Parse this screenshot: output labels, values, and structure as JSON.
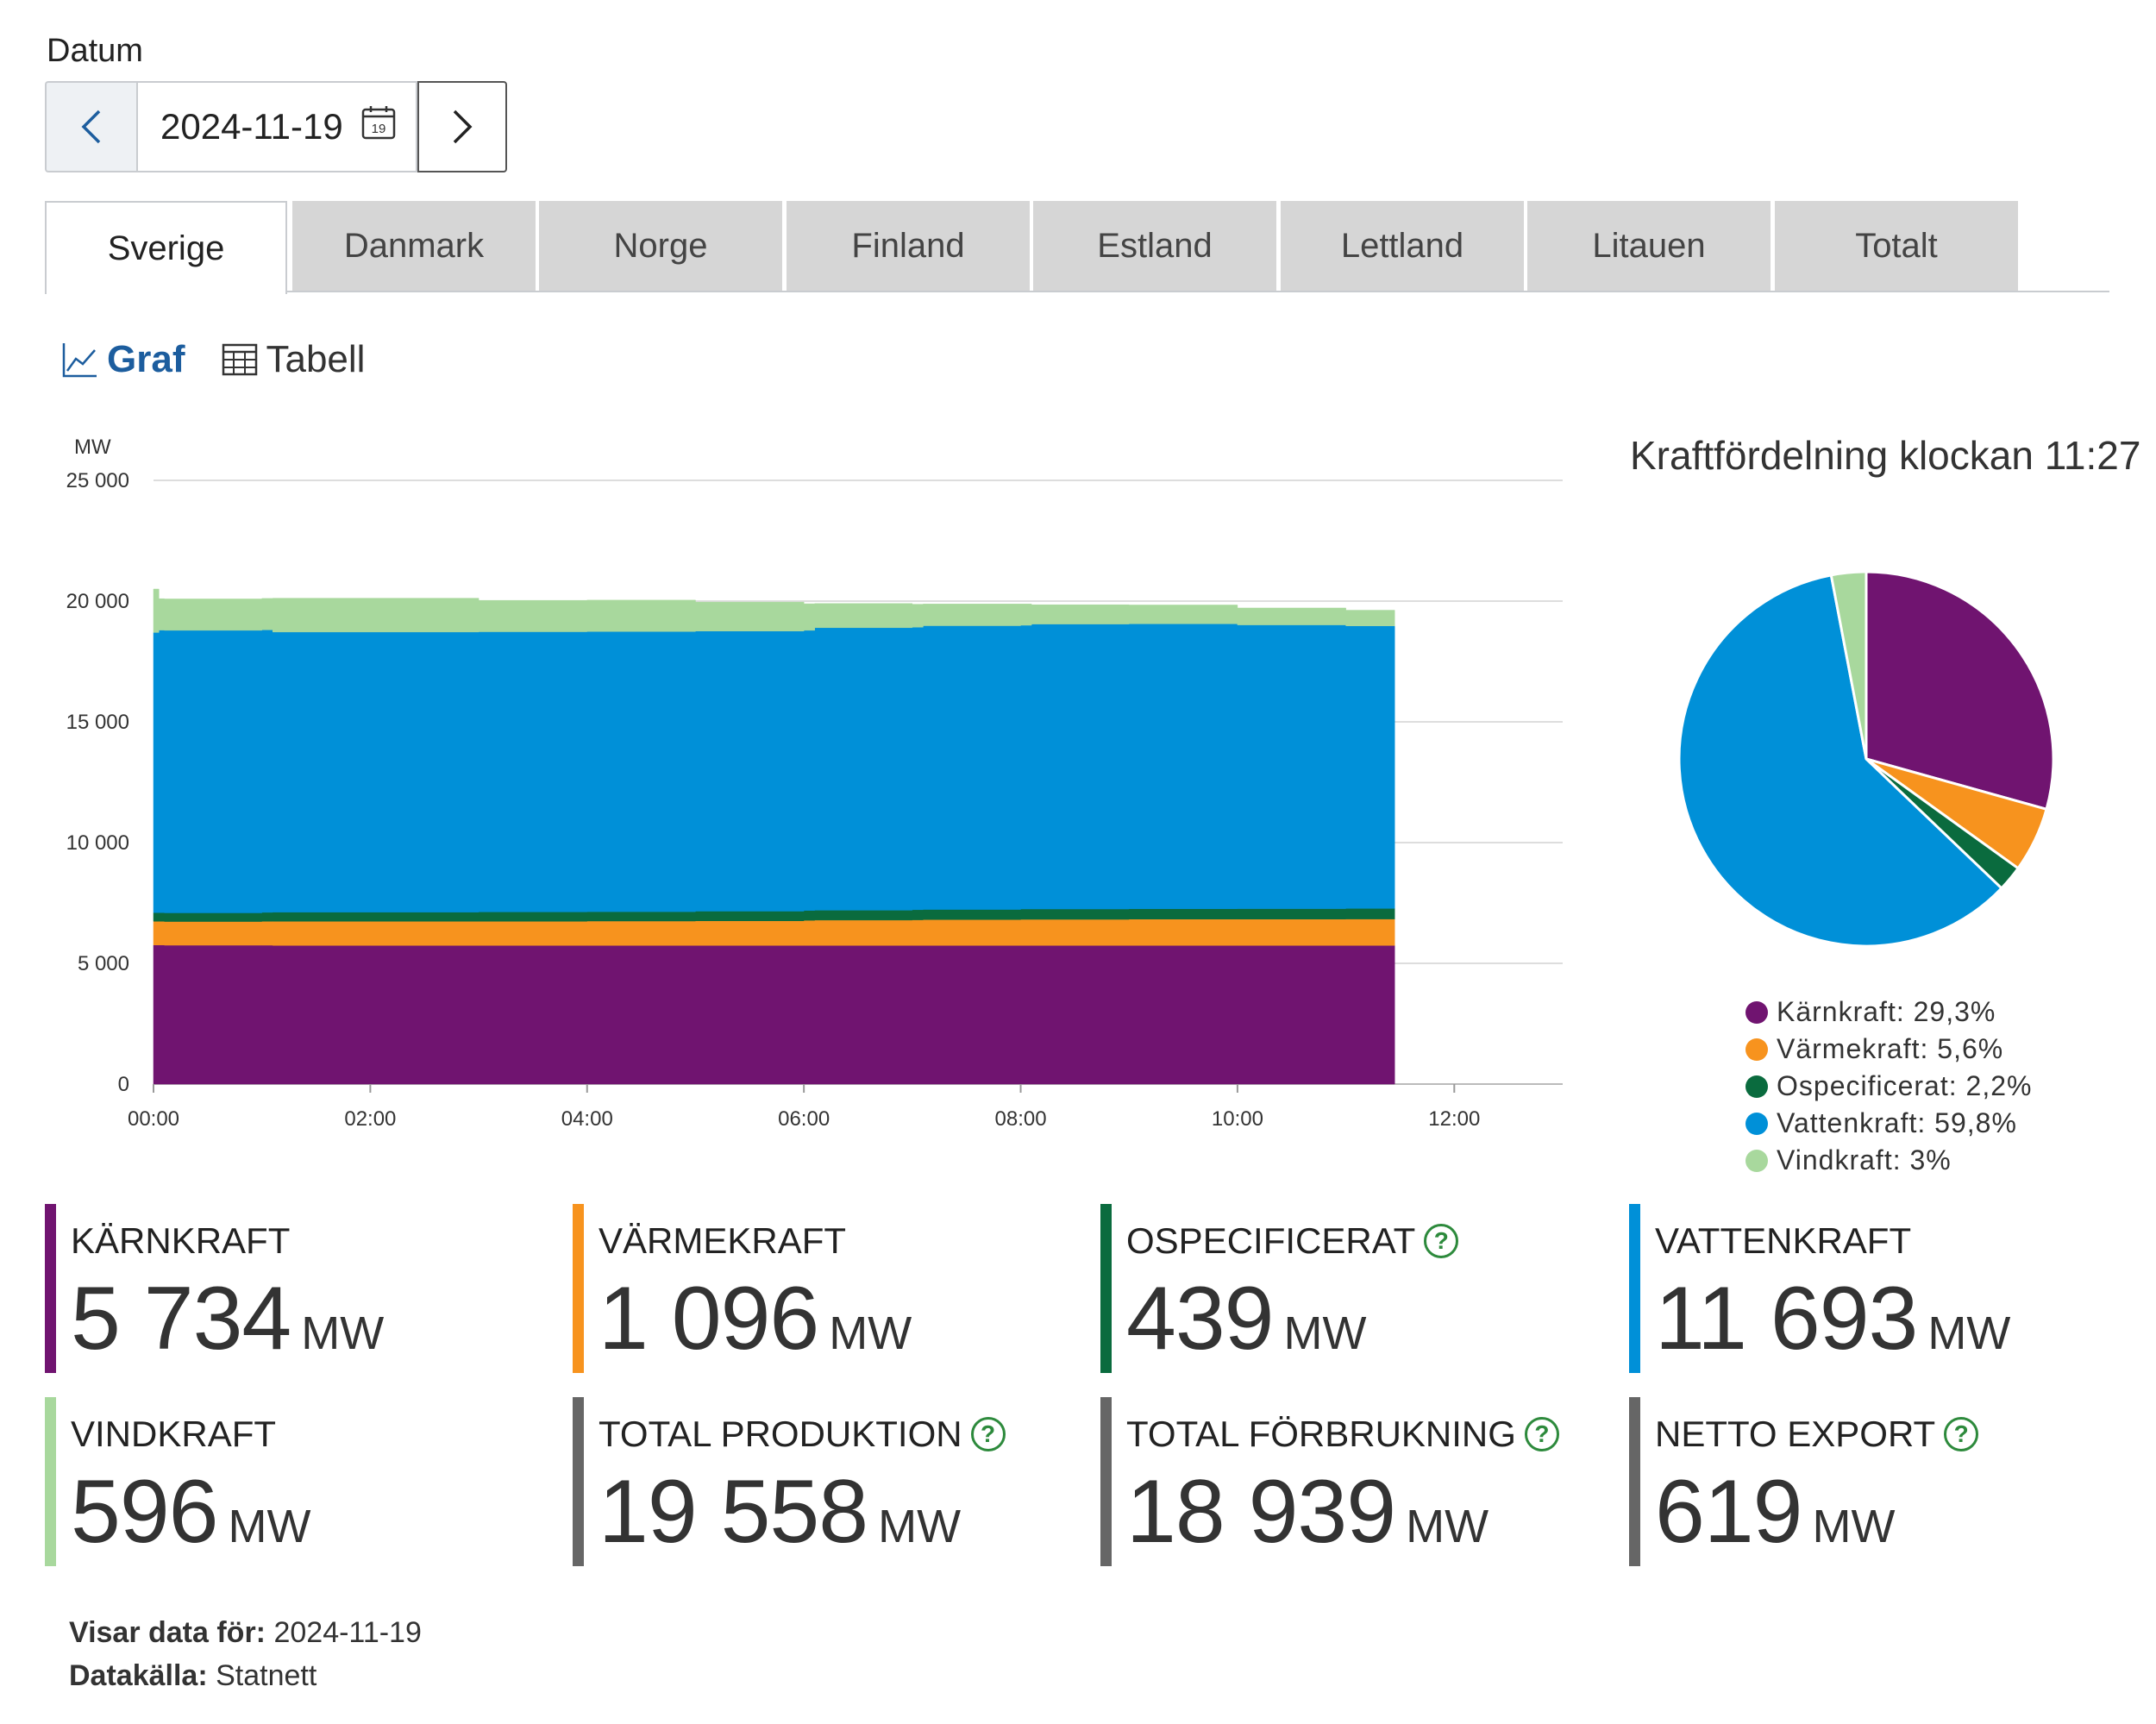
{
  "date": {
    "label": "Datum",
    "value": "2024-11-19",
    "calendar_day": "19"
  },
  "tabs": [
    {
      "label": "Sverige",
      "active": true
    },
    {
      "label": "Danmark",
      "active": false
    },
    {
      "label": "Norge",
      "active": false
    },
    {
      "label": "Finland",
      "active": false
    },
    {
      "label": "Estland",
      "active": false
    },
    {
      "label": "Lettland",
      "active": false
    },
    {
      "label": "Litauen",
      "active": false
    },
    {
      "label": "Totalt",
      "active": false
    }
  ],
  "view": {
    "graph_label": "Graf",
    "table_label": "Tabell"
  },
  "chart_data": [
    {
      "type": "area",
      "stacked": true,
      "ylabel": "MW",
      "ylim": [
        0,
        25000
      ],
      "yticks": [
        0,
        5000,
        10000,
        15000,
        20000,
        25000
      ],
      "ytick_labels": [
        "0",
        "5 000",
        "10 000",
        "15 000",
        "20 000",
        "25 000"
      ],
      "xlim": [
        0,
        13.0
      ],
      "xticks": [
        0,
        2,
        4,
        6,
        8,
        10,
        12
      ],
      "xtick_labels": [
        "00:00",
        "02:00",
        "04:00",
        "06:00",
        "08:00",
        "10:00",
        "12:00"
      ],
      "x": [
        0,
        0.05,
        0.1,
        1,
        1.1,
        2,
        3,
        4,
        5,
        6,
        6.1,
        7,
        7.1,
        8,
        8.1,
        9,
        10,
        11,
        11.45
      ],
      "grid": true,
      "legend": "none",
      "series": [
        {
          "name": "Kärnkraft",
          "color": "#701470",
          "values": [
            5760,
            5760,
            5750,
            5750,
            5740,
            5740,
            5740,
            5740,
            5740,
            5740,
            5740,
            5740,
            5740,
            5740,
            5740,
            5740,
            5740,
            5740,
            5734
          ]
        },
        {
          "name": "Värmekraft",
          "color": "#f7931e",
          "values": [
            980,
            980,
            980,
            990,
            1000,
            1000,
            1000,
            1010,
            1020,
            1040,
            1050,
            1060,
            1070,
            1080,
            1080,
            1090,
            1090,
            1095,
            1096
          ]
        },
        {
          "name": "Ospecificerat",
          "color": "#0a6b3e",
          "values": [
            360,
            360,
            360,
            370,
            380,
            380,
            390,
            390,
            400,
            410,
            410,
            420,
            420,
            430,
            430,
            430,
            435,
            438,
            439
          ]
        },
        {
          "name": "Vattenkraft",
          "color": "#0090d8",
          "values": [
            11600,
            11700,
            11700,
            11700,
            11600,
            11600,
            11600,
            11600,
            11600,
            11600,
            11700,
            11700,
            11750,
            11750,
            11800,
            11800,
            11750,
            11700,
            11693
          ]
        },
        {
          "name": "Vindkraft",
          "color": "#a8d89d",
          "values": [
            1800,
            1300,
            1300,
            1300,
            1400,
            1400,
            1300,
            1300,
            1200,
            1100,
            1000,
            950,
            900,
            880,
            800,
            780,
            700,
            650,
            596
          ]
        }
      ]
    },
    {
      "type": "pie",
      "title": "Kraftfördelning klockan 11:27",
      "legend": "bottom",
      "slices": [
        {
          "name": "Kärnkraft",
          "value": 29.3,
          "label": "Kärnkraft: 29,3%",
          "color": "#701470"
        },
        {
          "name": "Värmekraft",
          "value": 5.6,
          "label": "Värmekraft: 5,6%",
          "color": "#f7931e"
        },
        {
          "name": "Ospecificerat",
          "value": 2.2,
          "label": "Ospecificerat: 2,2%",
          "color": "#0a6b3e"
        },
        {
          "name": "Vattenkraft",
          "value": 59.8,
          "label": "Vattenkraft: 59,8%",
          "color": "#0090d8"
        },
        {
          "name": "Vindkraft",
          "value": 3,
          "label": "Vindkraft: 3%",
          "color": "#a8d89d"
        }
      ]
    }
  ],
  "stats": [
    {
      "name": "KÄRNKRAFT",
      "value": "5 734",
      "unit": "MW",
      "color": "#701470",
      "help": false
    },
    {
      "name": "VÄRMEKRAFT",
      "value": "1 096",
      "unit": "MW",
      "color": "#f7931e",
      "help": false
    },
    {
      "name": "OSPECIFICERAT",
      "value": "439",
      "unit": "MW",
      "color": "#0a6b3e",
      "help": true
    },
    {
      "name": "VATTENKRAFT",
      "value": "11 693",
      "unit": "MW",
      "color": "#0090d8",
      "help": false
    },
    {
      "name": "VINDKRAFT",
      "value": "596",
      "unit": "MW",
      "color": "#a8d89d",
      "help": false
    },
    {
      "name": "TOTAL PRODUKTION",
      "value": "19 558",
      "unit": "MW",
      "color": "#666666",
      "help": true
    },
    {
      "name": "TOTAL FÖRBRUKNING",
      "value": "18 939",
      "unit": "MW",
      "color": "#666666",
      "help": true
    },
    {
      "name": "NETTO EXPORT",
      "value": "619",
      "unit": "MW",
      "color": "#666666",
      "help": true
    }
  ],
  "help_glyph": "?",
  "footer": {
    "shown_label": "Visar data för:",
    "shown_value": "2024-11-19",
    "source_label": "Datakälla:",
    "source_value": "Statnett"
  }
}
